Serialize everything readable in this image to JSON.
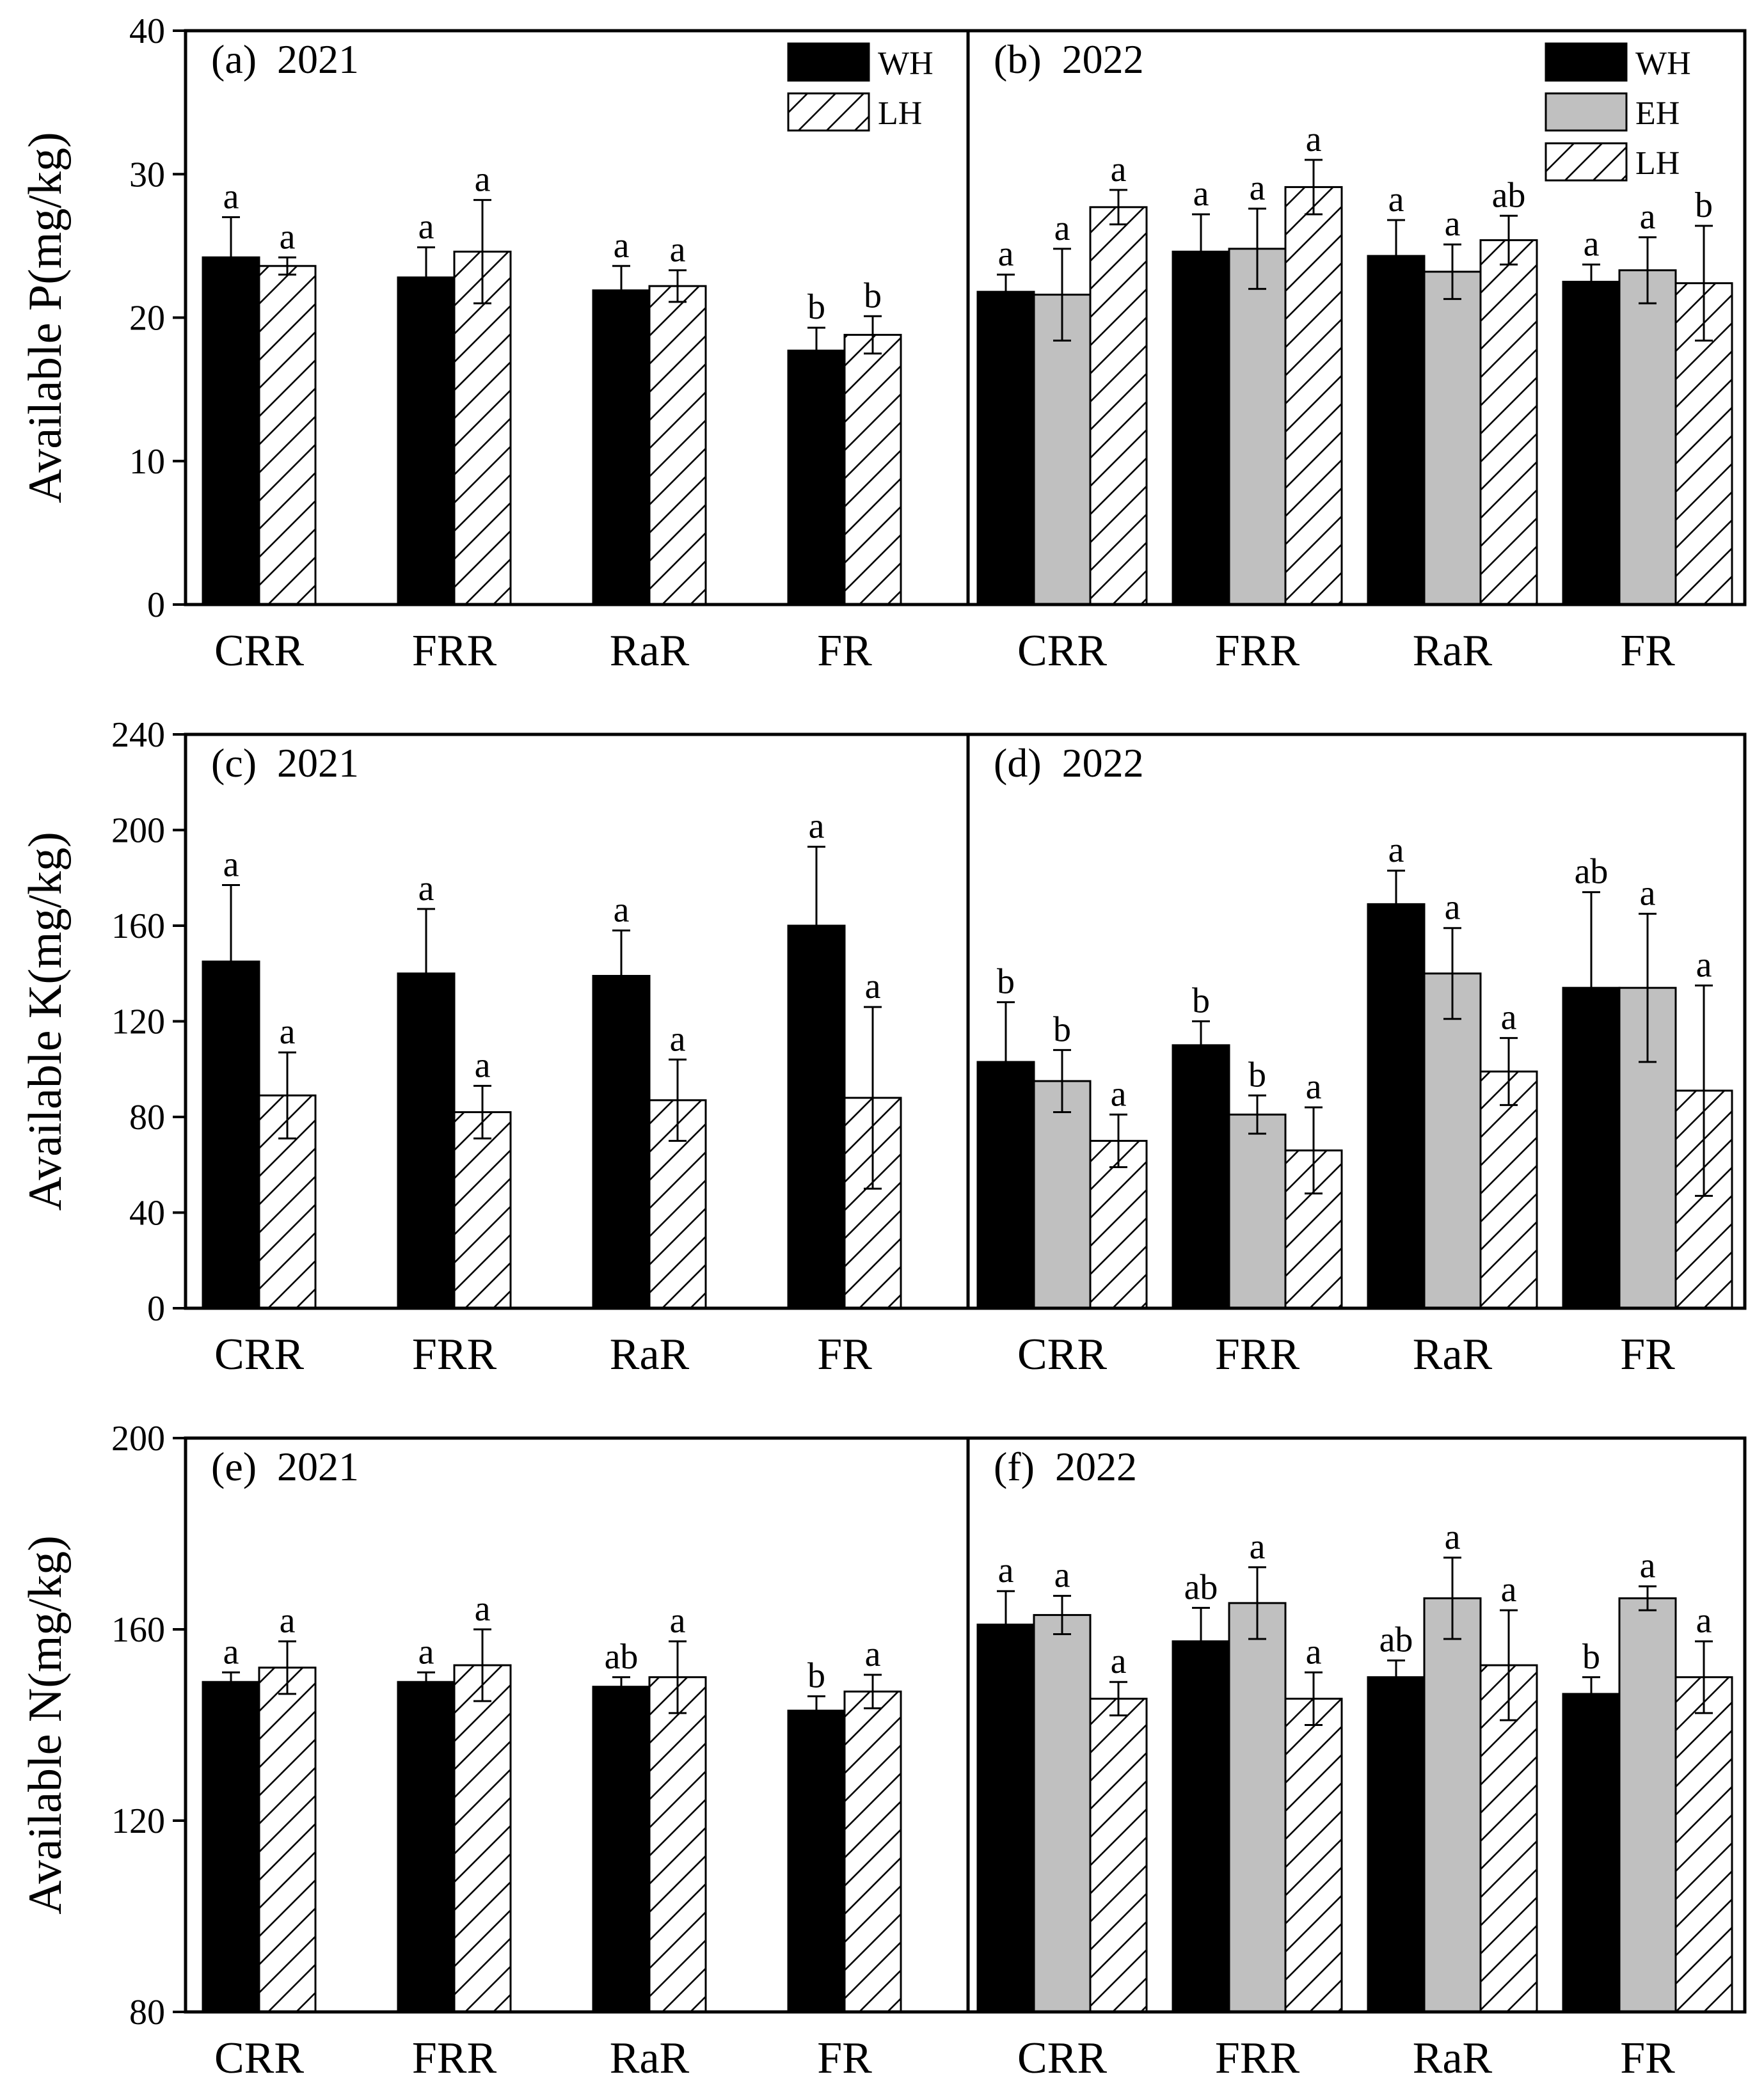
{
  "colors": {
    "WH": "#000000",
    "EH": "#c0c0c0",
    "LH": "#ffffff",
    "axis": "#000000"
  },
  "chart_data": [
    {
      "type": "bar",
      "ylabel": "Available P(mg/kg)",
      "ylim": [
        0,
        40
      ],
      "yticks": [
        0,
        10,
        20,
        30,
        40
      ],
      "panels": [
        {
          "label": "(a)",
          "year": "2021",
          "categories": [
            "CRR",
            "FRR",
            "RaR",
            "FR"
          ],
          "legend": [
            "WH",
            "LH"
          ],
          "series": [
            {
              "name": "WH",
              "values": [
                24.2,
                22.8,
                21.9,
                17.7
              ],
              "errors": [
                2.8,
                2.1,
                1.7,
                1.6
              ],
              "sig": [
                "a",
                "a",
                "a",
                "b"
              ]
            },
            {
              "name": "LH",
              "values": [
                23.6,
                24.6,
                22.2,
                18.8
              ],
              "errors": [
                0.6,
                3.6,
                1.1,
                1.3
              ],
              "sig": [
                "a",
                "a",
                "a",
                "b"
              ]
            }
          ]
        },
        {
          "label": "(b)",
          "year": "2022",
          "categories": [
            "CRR",
            "FRR",
            "RaR",
            "FR"
          ],
          "legend": [
            "WH",
            "EH",
            "LH"
          ],
          "series": [
            {
              "name": "WH",
              "values": [
                21.8,
                24.6,
                24.3,
                22.5
              ],
              "errors": [
                1.2,
                2.6,
                2.5,
                1.2
              ],
              "sig": [
                "a",
                "a",
                "a",
                "a"
              ]
            },
            {
              "name": "EH",
              "values": [
                21.6,
                24.8,
                23.2,
                23.3
              ],
              "errors": [
                3.2,
                2.8,
                1.9,
                2.3
              ],
              "sig": [
                "a",
                "a",
                "a",
                "a"
              ]
            },
            {
              "name": "LH",
              "values": [
                27.7,
                29.1,
                25.4,
                22.4
              ],
              "errors": [
                1.2,
                1.9,
                1.7,
                4.0
              ],
              "sig": [
                "a",
                "a",
                "ab",
                "b"
              ]
            }
          ]
        }
      ]
    },
    {
      "type": "bar",
      "ylabel": "Available K(mg/kg)",
      "ylim": [
        0,
        240
      ],
      "yticks": [
        0,
        40,
        80,
        120,
        160,
        200,
        240
      ],
      "panels": [
        {
          "label": "(c)",
          "year": "2021",
          "categories": [
            "CRR",
            "FRR",
            "RaR",
            "FR"
          ],
          "legend": [],
          "series": [
            {
              "name": "WH",
              "values": [
                145,
                140,
                139,
                160
              ],
              "errors": [
                32,
                27,
                19,
                33
              ],
              "sig": [
                "a",
                "a",
                "a",
                "a"
              ]
            },
            {
              "name": "LH",
              "values": [
                89,
                82,
                87,
                88
              ],
              "errors": [
                18,
                11,
                17,
                38
              ],
              "sig": [
                "a",
                "a",
                "a",
                "a"
              ]
            }
          ]
        },
        {
          "label": "(d)",
          "year": "2022",
          "categories": [
            "CRR",
            "FRR",
            "RaR",
            "FR"
          ],
          "legend": [],
          "series": [
            {
              "name": "WH",
              "values": [
                103,
                110,
                169,
                134
              ],
              "errors": [
                25,
                10,
                14,
                40
              ],
              "sig": [
                "b",
                "b",
                "a",
                "ab"
              ]
            },
            {
              "name": "EH",
              "values": [
                95,
                81,
                140,
                134
              ],
              "errors": [
                13,
                8,
                19,
                31
              ],
              "sig": [
                "b",
                "b",
                "a",
                "a"
              ]
            },
            {
              "name": "LH",
              "values": [
                70,
                66,
                99,
                91
              ],
              "errors": [
                11,
                18,
                14,
                44
              ],
              "sig": [
                "a",
                "a",
                "a",
                "a"
              ]
            }
          ]
        }
      ]
    },
    {
      "type": "bar",
      "ylabel": "Available N(mg/kg)",
      "ylim": [
        80,
        200
      ],
      "yticks": [
        80,
        120,
        160,
        200
      ],
      "panels": [
        {
          "label": "(e)",
          "year": "2021",
          "categories": [
            "CRR",
            "FRR",
            "RaR",
            "FR"
          ],
          "legend": [],
          "series": [
            {
              "name": "WH",
              "values": [
                149,
                149,
                148,
                143
              ],
              "errors": [
                2,
                2,
                2,
                3
              ],
              "sig": [
                "a",
                "a",
                "ab",
                "b"
              ]
            },
            {
              "name": "LH",
              "values": [
                152,
                152.5,
                150,
                147
              ],
              "errors": [
                5.5,
                7.5,
                7.5,
                3.5
              ],
              "sig": [
                "a",
                "a",
                "a",
                "a"
              ]
            }
          ]
        },
        {
          "label": "(f)",
          "year": "2022",
          "categories": [
            "CRR",
            "FRR",
            "RaR",
            "FR"
          ],
          "legend": [],
          "series": [
            {
              "name": "WH",
              "values": [
                161,
                157.5,
                150,
                146.5
              ],
              "errors": [
                7,
                7,
                3.5,
                3.5
              ],
              "sig": [
                "a",
                "ab",
                "ab",
                "b"
              ]
            },
            {
              "name": "EH",
              "values": [
                163,
                165.5,
                166.5,
                166.5
              ],
              "errors": [
                4,
                7.5,
                8.5,
                2.5
              ],
              "sig": [
                "a",
                "a",
                "a",
                "a"
              ]
            },
            {
              "name": "LH",
              "values": [
                145.5,
                145.5,
                152.5,
                150
              ],
              "errors": [
                3.5,
                5.5,
                11.5,
                7.5
              ],
              "sig": [
                "a",
                "a",
                "a",
                "a"
              ]
            }
          ]
        }
      ]
    }
  ]
}
